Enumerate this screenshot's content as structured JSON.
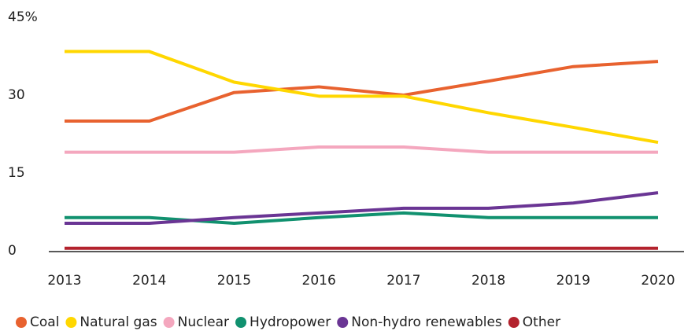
{
  "chart_data": {
    "type": "line",
    "categories": [
      "2013",
      "2014",
      "2015",
      "2016",
      "2017",
      "2018",
      "2019",
      "2020"
    ],
    "series": [
      {
        "name": "Coal",
        "color": "#e8622f",
        "values": [
          25,
          25,
          30.5,
          31.6,
          30,
          32.7,
          35.5,
          36.5
        ]
      },
      {
        "name": "Natural gas",
        "color": "#ffd700",
        "values": [
          38.4,
          38.4,
          32.5,
          29.8,
          29.8,
          26.6,
          23.8,
          20.9
        ]
      },
      {
        "name": "Nuclear",
        "color": "#f4a7be",
        "values": [
          19,
          19,
          19,
          20,
          20,
          19,
          19,
          19
        ]
      },
      {
        "name": "Hydropower",
        "color": "#11916f",
        "values": [
          6.4,
          6.4,
          5.3,
          6.4,
          7.3,
          6.4,
          6.4,
          6.4
        ]
      },
      {
        "name": "Non-hydro renewables",
        "color": "#6a3594",
        "values": [
          5.3,
          5.3,
          6.4,
          7.3,
          8.2,
          8.2,
          9.2,
          11.2
        ]
      },
      {
        "name": "Other",
        "color": "#b3222d",
        "values": [
          0.5,
          0.5,
          0.5,
          0.5,
          0.5,
          0.5,
          0.5,
          0.5
        ]
      }
    ],
    "ylim": [
      0,
      45
    ],
    "yticks": [
      0,
      15,
      30,
      {
        "value": 45,
        "label": "45%"
      }
    ],
    "grid": false
  }
}
